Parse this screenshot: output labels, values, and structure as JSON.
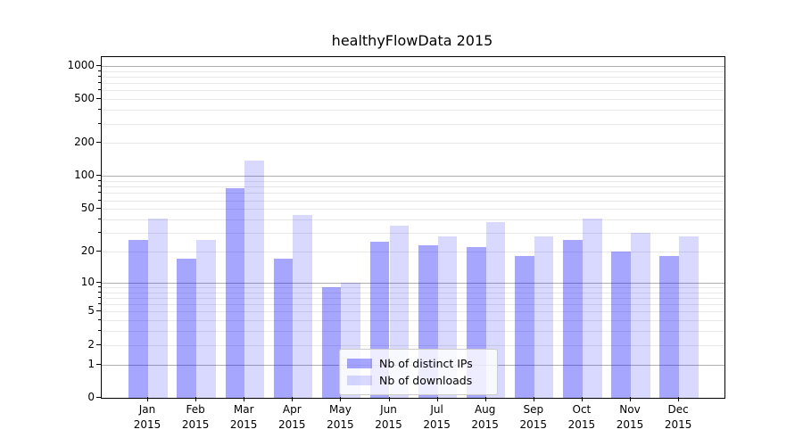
{
  "chart_data": {
    "type": "bar",
    "title": "healthyFlowData 2015",
    "yscale": "log1p",
    "categories": [
      "Jan",
      "Feb",
      "Mar",
      "Apr",
      "May",
      "Jun",
      "Jul",
      "Aug",
      "Sep",
      "Oct",
      "Nov",
      "Dec"
    ],
    "x_year_label": "2015",
    "series": [
      {
        "name": "Nb of distinct IPs",
        "color": "rgba(0,0,255,0.35)",
        "values": [
          26,
          17,
          77,
          17,
          9,
          25,
          23,
          22,
          18,
          26,
          20,
          18
        ]
      },
      {
        "name": "Nb of downloads",
        "color": "rgba(0,0,255,0.15)",
        "values": [
          41,
          26,
          138,
          44,
          10,
          35,
          28,
          38,
          28,
          41,
          30,
          28
        ]
      }
    ],
    "yticks": [
      0,
      1,
      2,
      5,
      10,
      20,
      50,
      100,
      200,
      500,
      1000
    ],
    "ylim": [
      0,
      1230
    ],
    "grid": {
      "major": [
        1,
        10,
        100,
        1000
      ],
      "minor": [
        2,
        3,
        4,
        5,
        6,
        7,
        8,
        9,
        20,
        30,
        40,
        50,
        60,
        70,
        80,
        90,
        200,
        300,
        400,
        500,
        600,
        700,
        800,
        900
      ]
    },
    "legend_position": "lower-center",
    "colors": {
      "grid_major": "#b0b0b0",
      "grid_minor": "#e8e8e8",
      "text": "#000000",
      "spine": "#000000"
    }
  }
}
